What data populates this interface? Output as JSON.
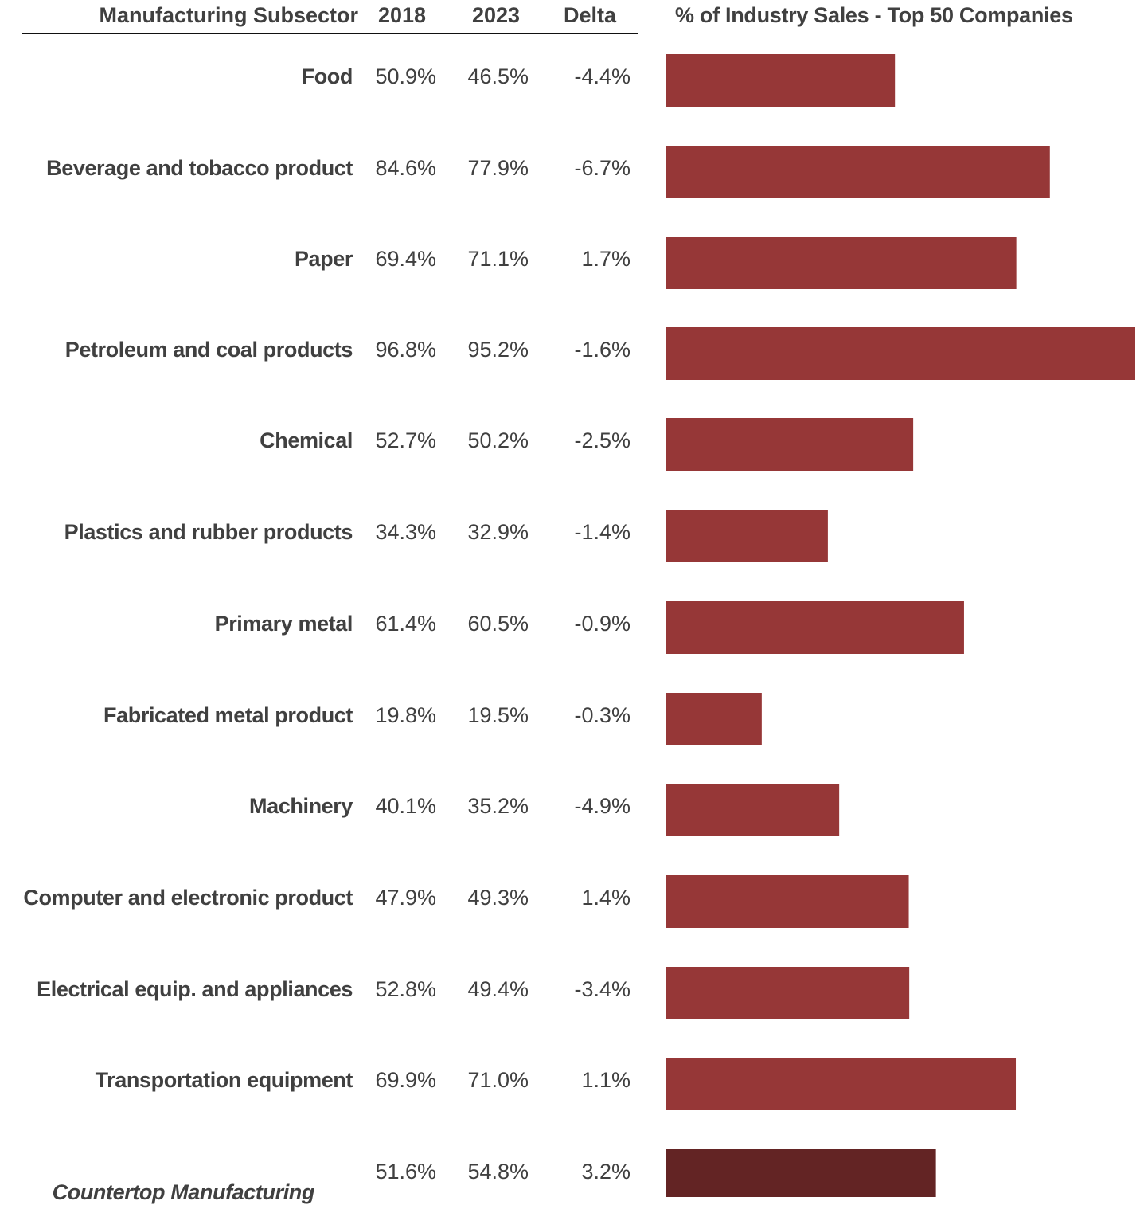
{
  "headers": {
    "subsector": "Manufacturing Subsector",
    "y2018": "2018",
    "y2023": "2023",
    "delta": "Delta",
    "chart_title": "% of Industry  Sales - Top 50 Companies"
  },
  "colors": {
    "bar": "#963737",
    "bar_highlight": "#632424",
    "text": "#404040"
  },
  "chart_data": {
    "type": "bar",
    "orientation": "horizontal",
    "title": "% of Industry  Sales - Top 50 Companies",
    "xlim": [
      0,
      95.2
    ],
    "grid": false,
    "categories": [
      "Food",
      "Beverage and tobacco product",
      "Paper",
      "Petroleum and coal products",
      "Chemical",
      "Plastics and rubber products",
      "Primary metal",
      "Fabricated metal product",
      "Machinery",
      "Computer and electronic product",
      "Electrical equip. and appliances",
      "Transportation equipment",
      "Countertop Manufacturing"
    ],
    "values": [
      46.5,
      77.9,
      71.1,
      95.2,
      50.2,
      32.9,
      60.5,
      19.5,
      35.2,
      49.3,
      49.4,
      71.0,
      54.8
    ],
    "highlight_index": 12
  },
  "rows": [
    {
      "label": "Food",
      "v2018": "50.9%",
      "v2023": "46.5%",
      "delta": "-4.4%"
    },
    {
      "label": "Beverage and tobacco product",
      "v2018": "84.6%",
      "v2023": "77.9%",
      "delta": "-6.7%"
    },
    {
      "label": "Paper",
      "v2018": "69.4%",
      "v2023": "71.1%",
      "delta": "1.7%"
    },
    {
      "label": "Petroleum and coal products",
      "v2018": "96.8%",
      "v2023": "95.2%",
      "delta": "-1.6%"
    },
    {
      "label": "Chemical",
      "v2018": "52.7%",
      "v2023": "50.2%",
      "delta": "-2.5%"
    },
    {
      "label": "Plastics and rubber products",
      "v2018": "34.3%",
      "v2023": "32.9%",
      "delta": "-1.4%"
    },
    {
      "label": "Primary metal",
      "v2018": "61.4%",
      "v2023": "60.5%",
      "delta": "-0.9%"
    },
    {
      "label": "Fabricated metal product",
      "v2018": "19.8%",
      "v2023": "19.5%",
      "delta": "-0.3%"
    },
    {
      "label": "Machinery",
      "v2018": "40.1%",
      "v2023": "35.2%",
      "delta": "-4.9%"
    },
    {
      "label": "Computer and electronic product",
      "v2018": "47.9%",
      "v2023": "49.3%",
      "delta": "1.4%"
    },
    {
      "label": "Electrical equip. and appliances",
      "v2018": "52.8%",
      "v2023": "49.4%",
      "delta": "-3.4%"
    },
    {
      "label": "Transportation equipment",
      "v2018": "69.9%",
      "v2023": "71.0%",
      "delta": "1.1%"
    },
    {
      "label": "Countertop Manufacturing",
      "v2018": "51.6%",
      "v2023": "54.8%",
      "delta": "3.2%"
    }
  ]
}
